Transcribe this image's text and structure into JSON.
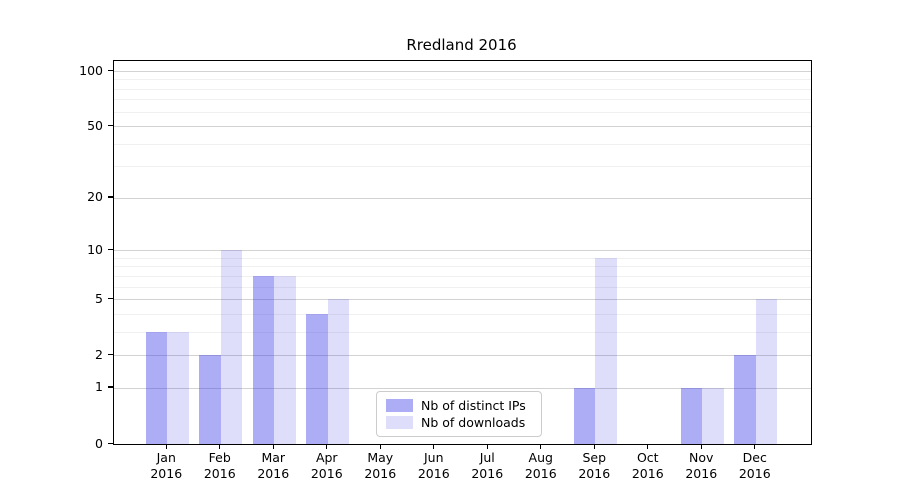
{
  "chart_data": {
    "type": "bar",
    "title": "Rredland 2016",
    "categories": [
      "Jan 2016",
      "Feb 2016",
      "Mar 2016",
      "Apr 2016",
      "May 2016",
      "Jun 2016",
      "Jul 2016",
      "Aug 2016",
      "Sep 2016",
      "Oct 2016",
      "Nov 2016",
      "Dec 2016"
    ],
    "series": [
      {
        "name": "Nb of distinct IPs",
        "color": "rgba(60,60,230,0.42)",
        "values": [
          3,
          2,
          7,
          4,
          0,
          0,
          0,
          0,
          1,
          0,
          1,
          2
        ]
      },
      {
        "name": "Nb of downloads",
        "color": "rgba(60,60,230,0.17)",
        "values": [
          3,
          10,
          7,
          5,
          0,
          0,
          0,
          0,
          9,
          0,
          1,
          5
        ]
      }
    ],
    "yaxis": {
      "scale": "log1p",
      "ticks": [
        0,
        1,
        2,
        5,
        10,
        20,
        50,
        100
      ],
      "minor_gridlines": [
        3,
        4,
        6,
        7,
        8,
        9,
        30,
        40,
        60,
        70,
        80,
        90
      ],
      "range": [
        0,
        100
      ]
    },
    "xlabel": "",
    "ylabel": "",
    "grid": true,
    "legend_position": "lower-center"
  }
}
